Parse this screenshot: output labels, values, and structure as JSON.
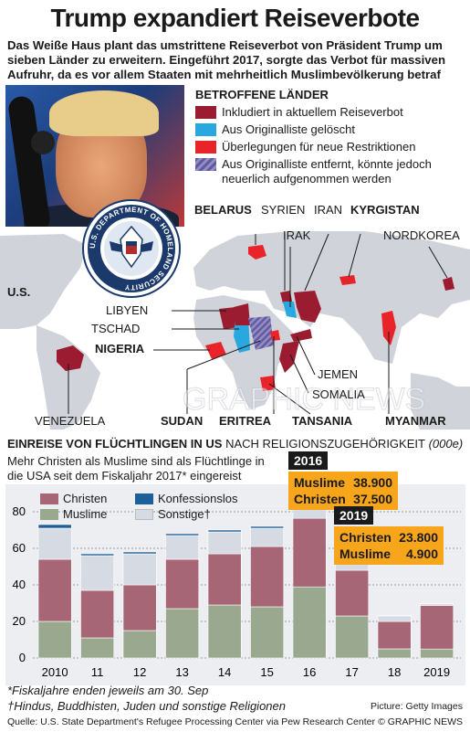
{
  "header": {
    "title": "Trump expandiert Reiseverbote",
    "intro": "Das Weiße Haus plant das umstrittene Reiseverbot von Präsident Trump um sieben Länder zu erweitern. Eingeführt 2017, sorgte das Verbot für massiven Aufruhr, da es vor allem Staaten mit mehrheitlich Muslimbevölkerung betraf"
  },
  "legend": {
    "title": "BETROFFENE LÄNDER",
    "items": [
      {
        "label": "Inkludiert in aktuellem Reiseverbot",
        "color": "#9b1b30"
      },
      {
        "label": "Aus Originalliste gelöscht",
        "color": "#29a8e0"
      },
      {
        "label": "Überlegungen für neue Restriktionen",
        "color": "#e8232a"
      },
      {
        "label": "Aus Originalliste entfernt, könnte jedoch neuerlich aufgenommen werden",
        "color": "#5b5ea6"
      }
    ]
  },
  "seal": {
    "text": "U.S. DEPARTMENT OF HOMELAND SECURITY"
  },
  "map": {
    "labels": {
      "belarus": "BELARUS",
      "syrien": "SYRIEN",
      "iran": "IRAN",
      "kyrgistan": "KYRGISTAN",
      "irak": "IRAK",
      "nordkorea": "NORDKOREA",
      "us": "U.S.",
      "libyen": "LIBYEN",
      "tschad": "TSCHAD",
      "nigeria": "NIGERIA",
      "jemen": "JEMEN",
      "somalia": "SOMALIA",
      "venezuela": "VENEZUELA",
      "sudan": "SUDAN",
      "eritrea": "ERITREA",
      "tansania": "TANSANIA",
      "myanmar": "MYANMAR"
    },
    "watermark": "GRAPHIC NEWS"
  },
  "chart": {
    "title_main": "EINREISE VON FLÜCHTLINGEN IN US",
    "title_rest": " NACH RELIGIONSZUGEHÖRIGKEIT",
    "unit": "(000e)",
    "subtitle": "Mehr Christen als Muslime sind als Flüchtlinge in die USA seit dem Fiskaljahr 2017* eingereist",
    "legend": [
      {
        "name": "Christen",
        "color": "#a76676"
      },
      {
        "name": "Konfessionslos",
        "color": "#1e5f99"
      },
      {
        "name": "Muslime",
        "color": "#9aa890"
      },
      {
        "name": "Sonstige†",
        "color": "#d6dbe3"
      }
    ],
    "callout_2016": {
      "year": "2016",
      "rows": [
        [
          "Muslime",
          "38.900"
        ],
        [
          "Christen",
          "37.500"
        ]
      ]
    },
    "callout_2019": {
      "year": "2019",
      "rows": [
        [
          "Christen",
          "23.800"
        ],
        [
          "Muslime",
          "4.900"
        ]
      ]
    }
  },
  "chart_data": {
    "type": "bar",
    "stacked": true,
    "categories": [
      "2010",
      "11",
      "12",
      "13",
      "14",
      "15",
      "16",
      "17",
      "18",
      "2019"
    ],
    "series": [
      {
        "name": "Muslime",
        "values": [
          20,
          11,
          15,
          27,
          29,
          28,
          38.9,
          23,
          5,
          4.9
        ]
      },
      {
        "name": "Christen",
        "values": [
          34,
          26,
          25,
          27,
          28,
          33,
          37.5,
          25,
          15,
          23.8
        ]
      },
      {
        "name": "Sonstige†",
        "values": [
          17,
          19,
          17,
          13,
          12,
          10,
          8,
          4,
          3,
          1
        ]
      },
      {
        "name": "Konfessionslos",
        "values": [
          2,
          1,
          1,
          1,
          1,
          1,
          1,
          1,
          0.3,
          0.2
        ]
      }
    ],
    "yticks": [
      0,
      20,
      40,
      60,
      80
    ],
    "ylim": [
      0,
      90
    ]
  },
  "footer": {
    "note1": "*Fiskaljahre enden jeweils am 30. Sep",
    "note2": "†Hindus, Buddhisten, Juden und sonstige Religionen",
    "source": "Quelle: U.S. State Department's Refugee Processing Center via Pew Research Center",
    "picture": "Picture: Getty Images",
    "copyright": "© GRAPHIC NEWS"
  }
}
